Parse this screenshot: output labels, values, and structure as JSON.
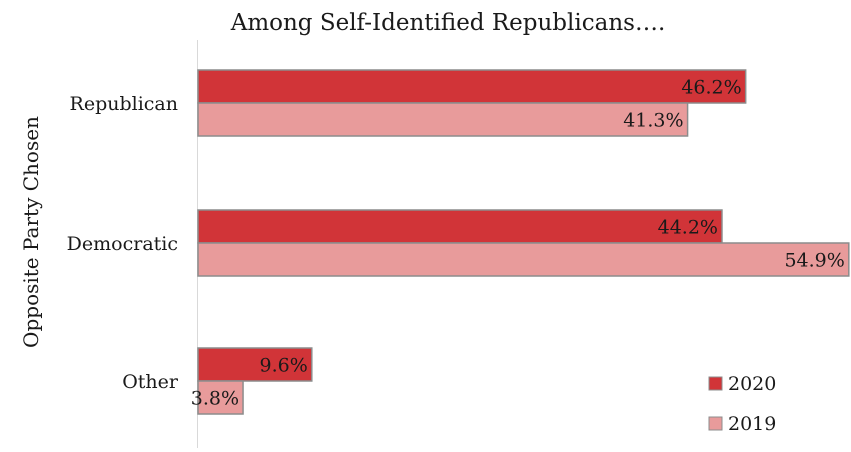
{
  "chart_data": {
    "type": "bar",
    "orientation": "horizontal",
    "title": "Among Self-Identified Republicans….",
    "ylabel": "Opposite Party Chosen",
    "xlabel": "",
    "categories": [
      "Republican",
      "Democratic",
      "Other"
    ],
    "series": [
      {
        "name": "2020",
        "values": [
          46.2,
          44.2,
          9.6
        ],
        "labels": [
          "46.2%",
          "44.2%",
          "9.6%"
        ],
        "color": "#d13438"
      },
      {
        "name": "2019",
        "values": [
          41.3,
          54.9,
          3.8
        ],
        "labels": [
          "41.3%",
          "54.9%",
          "3.8%"
        ],
        "color": "#e89b9b"
      }
    ],
    "xlim": [
      0,
      55
    ],
    "grid": false,
    "legend": "bottom-right",
    "bar_border_color": "#8c8c8c"
  }
}
